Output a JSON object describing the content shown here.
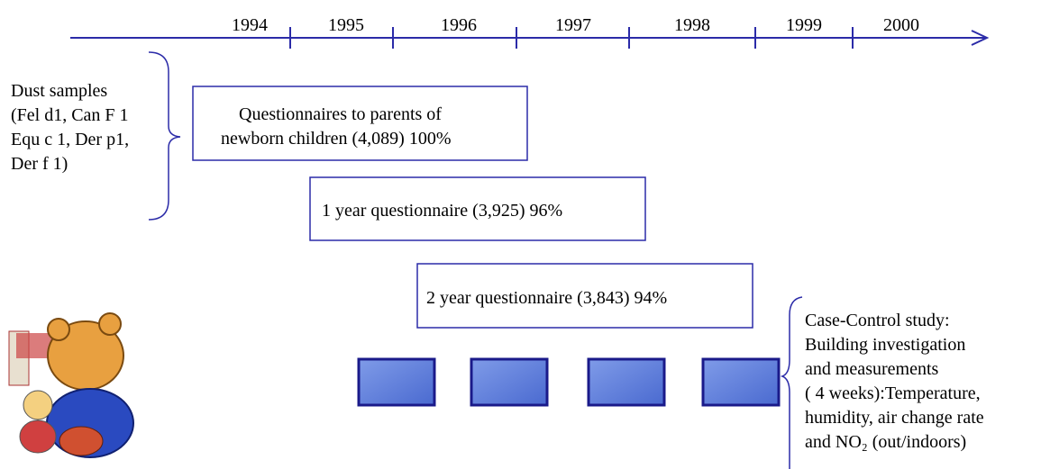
{
  "timeline": {
    "years": [
      "1994",
      "1995",
      "1996",
      "1997",
      "1998",
      "1999",
      "2000"
    ]
  },
  "dust_samples": {
    "lines": [
      "Dust samples",
      "(Fel d1, Can F 1",
      "Equ c 1, Der p1,",
      "Der f 1)"
    ]
  },
  "boxes": [
    {
      "lines": [
        "Questionnaires to parents of",
        "newborn children (4,089) 100%"
      ]
    },
    {
      "lines": [
        "1 year questionnaire (3,925) 96%"
      ]
    },
    {
      "lines": [
        "2 year questionnaire (3,843) 94%"
      ]
    }
  ],
  "case_control": {
    "lines": [
      "Case-Control study:",
      "Building investigation",
      "and measurements",
      "( 4 weeks):Temperature,",
      "humidity, air change rate",
      "and NO₂ (out/indoors)"
    ]
  }
}
